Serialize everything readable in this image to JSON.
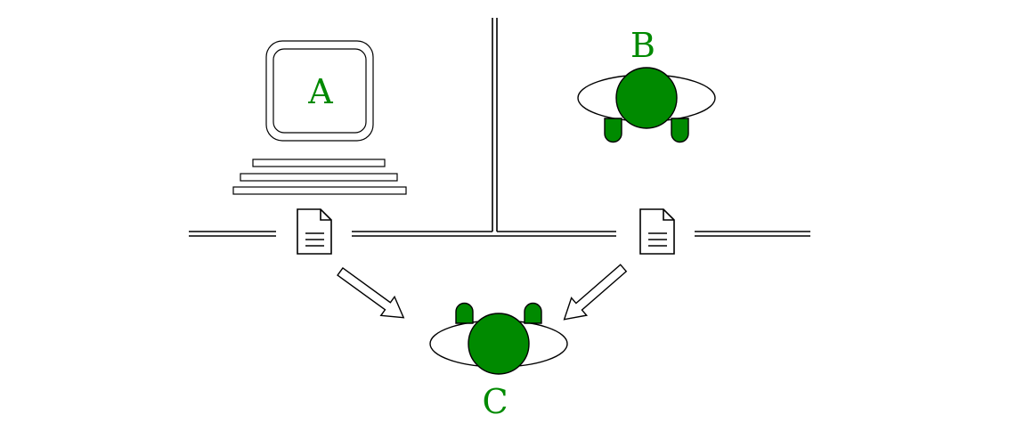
{
  "colors": {
    "accent": "#008a00",
    "stroke": "#000000",
    "background": "#ffffff"
  },
  "nodes": {
    "a": {
      "label": "A",
      "kind": "computer-icon"
    },
    "b": {
      "label": "B",
      "kind": "person-icon"
    },
    "c": {
      "label": "C",
      "kind": "person-icon"
    }
  },
  "icons": {
    "document_left": "document-icon",
    "document_right": "document-icon",
    "arrow_left": "arrow-down-right-icon",
    "arrow_right": "arrow-down-left-icon"
  }
}
